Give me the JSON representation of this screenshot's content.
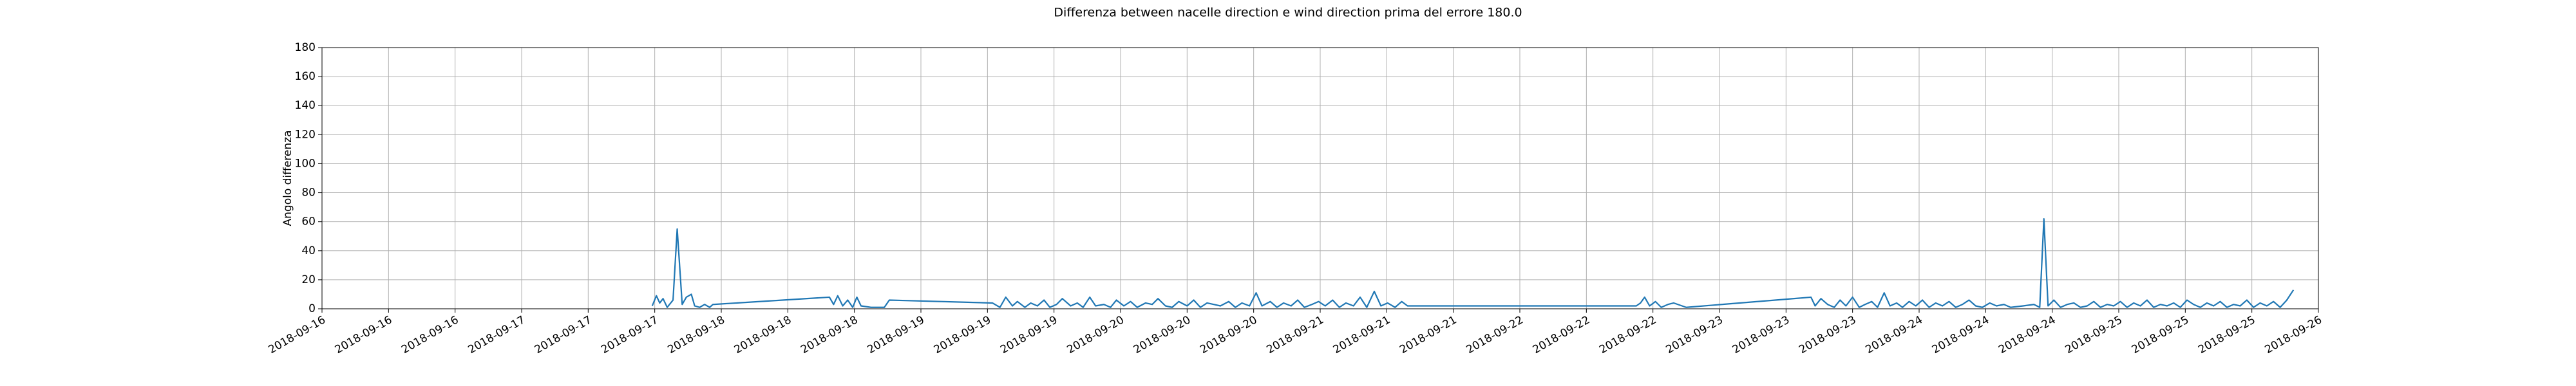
{
  "chart_data": {
    "type": "line",
    "title": "Differenza between nacelle direction e wind direction prima del errore 180.0",
    "ylabel": "Angolo differenza",
    "xlim": [
      0,
      240
    ],
    "ylim": [
      0,
      180
    ],
    "yticks": [
      0,
      20,
      40,
      60,
      80,
      100,
      120,
      140,
      160,
      180
    ],
    "xticks": [
      {
        "value": 0,
        "label": "2018-09-16"
      },
      {
        "value": 8,
        "label": "2018-09-16"
      },
      {
        "value": 16,
        "label": "2018-09-16"
      },
      {
        "value": 24,
        "label": "2018-09-17"
      },
      {
        "value": 32,
        "label": "2018-09-17"
      },
      {
        "value": 40,
        "label": "2018-09-17"
      },
      {
        "value": 48,
        "label": "2018-09-18"
      },
      {
        "value": 56,
        "label": "2018-09-18"
      },
      {
        "value": 64,
        "label": "2018-09-18"
      },
      {
        "value": 72,
        "label": "2018-09-19"
      },
      {
        "value": 80,
        "label": "2018-09-19"
      },
      {
        "value": 88,
        "label": "2018-09-19"
      },
      {
        "value": 96,
        "label": "2018-09-20"
      },
      {
        "value": 104,
        "label": "2018-09-20"
      },
      {
        "value": 112,
        "label": "2018-09-20"
      },
      {
        "value": 120,
        "label": "2018-09-21"
      },
      {
        "value": 128,
        "label": "2018-09-21"
      },
      {
        "value": 136,
        "label": "2018-09-21"
      },
      {
        "value": 144,
        "label": "2018-09-22"
      },
      {
        "value": 152,
        "label": "2018-09-22"
      },
      {
        "value": 160,
        "label": "2018-09-22"
      },
      {
        "value": 168,
        "label": "2018-09-23"
      },
      {
        "value": 176,
        "label": "2018-09-23"
      },
      {
        "value": 184,
        "label": "2018-09-23"
      },
      {
        "value": 192,
        "label": "2018-09-24"
      },
      {
        "value": 200,
        "label": "2018-09-24"
      },
      {
        "value": 208,
        "label": "2018-09-24"
      },
      {
        "value": 216,
        "label": "2018-09-25"
      },
      {
        "value": 224,
        "label": "2018-09-25"
      },
      {
        "value": 232,
        "label": "2018-09-25"
      },
      {
        "value": 240,
        "label": "2018-09-26"
      }
    ],
    "grid": true,
    "x": [
      39.7,
      40.2,
      40.6,
      41,
      41.5,
      42.2,
      42.7,
      43.3,
      43.8,
      44.4,
      44.8,
      45.4,
      46,
      46.6,
      47,
      61,
      61.5,
      62,
      62.6,
      63.2,
      63.8,
      64.3,
      64.8,
      66,
      67.6,
      68.2,
      80.6,
      81.5,
      82.2,
      83,
      83.6,
      84.5,
      85.2,
      86,
      86.8,
      87.5,
      88.3,
      89,
      90,
      90.8,
      91.5,
      92.3,
      93,
      94,
      94.8,
      95.5,
      96.4,
      97.2,
      98,
      99,
      99.8,
      100.5,
      101.4,
      102.2,
      103,
      104,
      104.8,
      105.6,
      106.4,
      107.2,
      108,
      109,
      109.8,
      110.6,
      111.5,
      112.3,
      113,
      114,
      114.8,
      115.6,
      116.5,
      117.3,
      118.1,
      119,
      119.8,
      120.6,
      121.5,
      122.3,
      123.1,
      124,
      124.8,
      125.6,
      126.5,
      127.3,
      128.1,
      129,
      129.8,
      130.5,
      131,
      158,
      158.5,
      159,
      159.6,
      160.3,
      161,
      161.8,
      162.5,
      164,
      179,
      179.5,
      180.2,
      181,
      181.8,
      182.5,
      183.2,
      184,
      184.8,
      185.5,
      186.3,
      187,
      187.8,
      188.5,
      189.3,
      190,
      190.8,
      191.6,
      192.4,
      193.2,
      194,
      194.8,
      195.6,
      196.4,
      197.2,
      198,
      198.8,
      199.6,
      200.5,
      201.3,
      202.2,
      203,
      204.5,
      205.8,
      206.5,
      207,
      207.5,
      208.2,
      209,
      209.8,
      210.6,
      211.4,
      212.2,
      213,
      213.8,
      214.6,
      215.4,
      216.2,
      217,
      217.8,
      218.6,
      219.4,
      220.2,
      221,
      221.8,
      222.6,
      223.4,
      224.2,
      225,
      225.8,
      226.6,
      227.4,
      228.2,
      229,
      229.8,
      230.6,
      231.4,
      232.2,
      233,
      233.8,
      234.6,
      235.4,
      236.2,
      237
    ],
    "series": [
      {
        "color": "#1f77b4",
        "values": [
          2,
          9,
          4,
          7,
          1,
          6,
          55,
          3,
          8,
          10,
          2,
          1,
          3,
          1,
          3,
          8,
          3,
          9,
          2,
          6,
          1,
          8,
          2,
          1,
          1,
          6,
          4,
          1,
          8,
          2,
          5,
          1,
          4,
          2,
          6,
          1,
          3,
          7,
          2,
          4,
          1,
          8,
          2,
          3,
          1,
          6,
          2,
          5,
          1,
          4,
          3,
          7,
          2,
          1,
          5,
          2,
          6,
          1,
          4,
          3,
          2,
          5,
          1,
          4,
          2,
          11,
          2,
          5,
          1,
          4,
          2,
          6,
          1,
          3,
          5,
          2,
          6,
          1,
          4,
          2,
          8,
          1,
          12,
          2,
          4,
          1,
          5,
          2,
          2,
          2,
          4,
          8,
          2,
          5,
          1,
          3,
          4,
          1,
          8,
          2,
          7,
          3,
          1,
          6,
          2,
          8,
          1,
          3,
          5,
          1,
          11,
          2,
          4,
          1,
          5,
          2,
          6,
          1,
          4,
          2,
          5,
          1,
          3,
          6,
          2,
          1,
          4,
          2,
          3,
          1,
          2,
          3,
          1,
          62,
          2,
          6,
          1,
          3,
          4,
          1,
          2,
          5,
          1,
          3,
          2,
          5,
          1,
          4,
          2,
          6,
          1,
          3,
          2,
          4,
          1,
          6,
          3,
          1,
          4,
          2,
          5,
          1,
          3,
          2,
          6,
          1,
          4,
          2,
          5,
          1,
          6,
          13
        ]
      }
    ]
  }
}
